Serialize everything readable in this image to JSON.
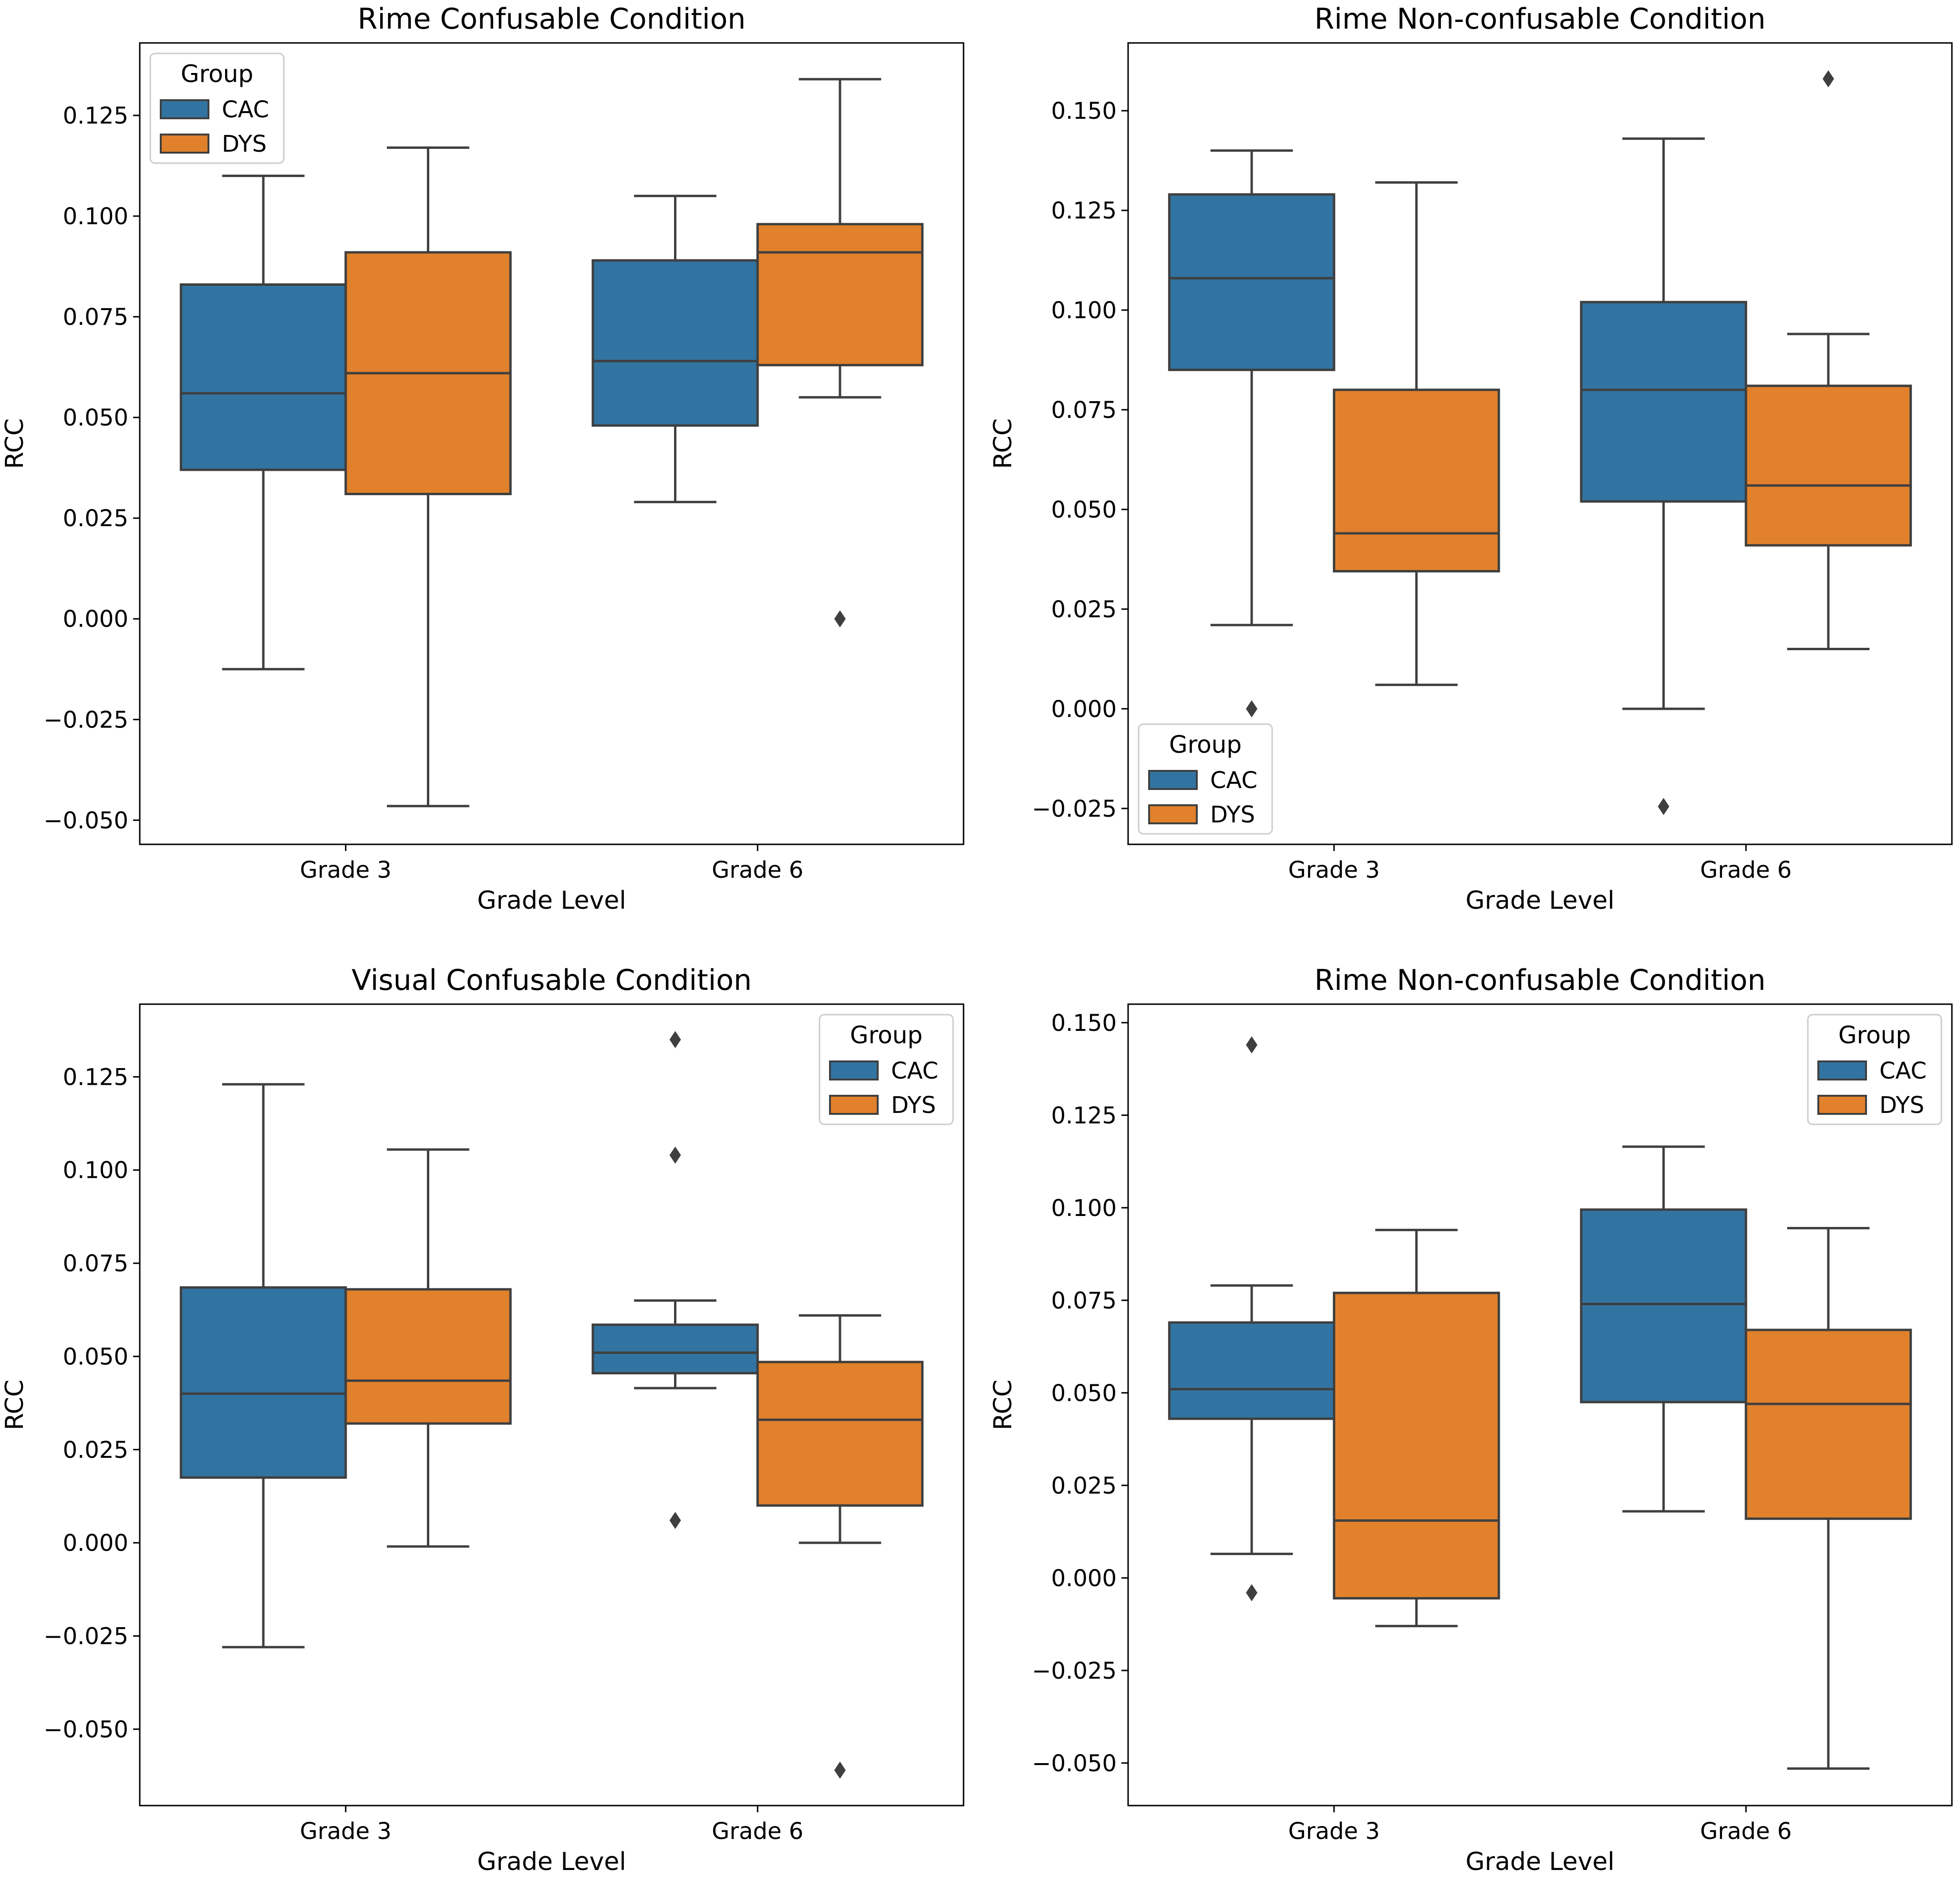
{
  "colors": {
    "CAC": "#3274a1",
    "DYS": "#e1812c",
    "edge": "#3f3f3f",
    "frame": "#000000",
    "background": "#ffffff"
  },
  "chart_data": [
    {
      "type": "box",
      "title": "Rime Confusable Condition",
      "xlabel": "Grade Level",
      "ylabel": "RCC",
      "categories": [
        "Grade 3",
        "Grade 6"
      ],
      "ylim": [
        -0.056,
        0.143
      ],
      "yticks": [
        -0.05,
        -0.025,
        0.0,
        0.025,
        0.05,
        0.075,
        0.1,
        0.125
      ],
      "ytick_labels": [
        "−0.050",
        "−0.025",
        "0.000",
        "0.025",
        "0.050",
        "0.075",
        "0.100",
        "0.125"
      ],
      "legend": {
        "title": "Group",
        "position": "upper-left",
        "entries": [
          "CAC",
          "DYS"
        ]
      },
      "series": [
        {
          "name": "CAC",
          "boxes": [
            {
              "whislo": -0.0125,
              "q1": 0.037,
              "med": 0.056,
              "q3": 0.083,
              "whishi": 0.11,
              "fliers": []
            },
            {
              "whislo": 0.029,
              "q1": 0.048,
              "med": 0.064,
              "q3": 0.089,
              "whishi": 0.105,
              "fliers": []
            }
          ]
        },
        {
          "name": "DYS",
          "boxes": [
            {
              "whislo": -0.0465,
              "q1": 0.031,
              "med": 0.061,
              "q3": 0.091,
              "whishi": 0.117,
              "fliers": []
            },
            {
              "whislo": 0.055,
              "q1": 0.063,
              "med": 0.091,
              "q3": 0.098,
              "whishi": 0.134,
              "fliers": [
                0.0
              ]
            }
          ]
        }
      ]
    },
    {
      "type": "box",
      "title": "Rime Non-confusable Condition",
      "xlabel": "Grade Level",
      "ylabel": "RCC",
      "categories": [
        "Grade 3",
        "Grade 6"
      ],
      "ylim": [
        -0.034,
        0.167
      ],
      "yticks": [
        -0.025,
        0.0,
        0.025,
        0.05,
        0.075,
        0.1,
        0.125,
        0.15
      ],
      "ytick_labels": [
        "−0.025",
        "0.000",
        "0.025",
        "0.050",
        "0.075",
        "0.100",
        "0.125",
        "0.150"
      ],
      "legend": {
        "title": "Group",
        "position": "lower-left",
        "entries": [
          "CAC",
          "DYS"
        ]
      },
      "series": [
        {
          "name": "CAC",
          "boxes": [
            {
              "whislo": 0.021,
              "q1": 0.085,
              "med": 0.108,
              "q3": 0.129,
              "whishi": 0.14,
              "fliers": [
                0.0
              ]
            },
            {
              "whislo": 0.0,
              "q1": 0.052,
              "med": 0.08,
              "q3": 0.102,
              "whishi": 0.143,
              "fliers": [
                -0.0245
              ]
            }
          ]
        },
        {
          "name": "DYS",
          "boxes": [
            {
              "whislo": 0.006,
              "q1": 0.0345,
              "med": 0.044,
              "q3": 0.08,
              "whishi": 0.132,
              "fliers": []
            },
            {
              "whislo": 0.015,
              "q1": 0.041,
              "med": 0.056,
              "q3": 0.081,
              "whishi": 0.094,
              "fliers": [
                0.158
              ]
            }
          ]
        }
      ]
    },
    {
      "type": "box",
      "title": "Visual Confusable Condition",
      "xlabel": "Grade Level",
      "ylabel": "RCC",
      "categories": [
        "Grade 3",
        "Grade 6"
      ],
      "ylim": [
        -0.0705,
        0.1445
      ],
      "yticks": [
        -0.05,
        -0.025,
        0.0,
        0.025,
        0.05,
        0.075,
        0.1,
        0.125
      ],
      "ytick_labels": [
        "−0.050",
        "−0.025",
        "0.000",
        "0.025",
        "0.050",
        "0.075",
        "0.100",
        "0.125"
      ],
      "legend": {
        "title": "Group",
        "position": "upper-right",
        "entries": [
          "CAC",
          "DYS"
        ]
      },
      "series": [
        {
          "name": "CAC",
          "boxes": [
            {
              "whislo": -0.028,
              "q1": 0.0175,
              "med": 0.04,
              "q3": 0.0685,
              "whishi": 0.123,
              "fliers": []
            },
            {
              "whislo": 0.0415,
              "q1": 0.0455,
              "med": 0.051,
              "q3": 0.0585,
              "whishi": 0.065,
              "fliers": [
                0.135,
                0.104,
                0.006
              ]
            }
          ]
        },
        {
          "name": "DYS",
          "boxes": [
            {
              "whislo": -0.001,
              "q1": 0.032,
              "med": 0.0435,
              "q3": 0.068,
              "whishi": 0.1055,
              "fliers": []
            },
            {
              "whislo": 0.0,
              "q1": 0.01,
              "med": 0.033,
              "q3": 0.0485,
              "whishi": 0.061,
              "fliers": [
                -0.061
              ]
            }
          ]
        }
      ]
    },
    {
      "type": "box",
      "title": "Rime Non-confusable Condition",
      "xlabel": "Grade Level",
      "ylabel": "RCC",
      "categories": [
        "Grade 3",
        "Grade 6"
      ],
      "ylim": [
        -0.0615,
        0.155
      ],
      "yticks": [
        -0.05,
        -0.025,
        0.0,
        0.025,
        0.05,
        0.075,
        0.1,
        0.125,
        0.15
      ],
      "ytick_labels": [
        "−0.050",
        "−0.025",
        "0.000",
        "0.025",
        "0.050",
        "0.075",
        "0.100",
        "0.125",
        "0.150"
      ],
      "legend": {
        "title": "Group",
        "position": "upper-right",
        "entries": [
          "CAC",
          "DYS"
        ]
      },
      "series": [
        {
          "name": "CAC",
          "boxes": [
            {
              "whislo": 0.0065,
              "q1": 0.043,
              "med": 0.051,
              "q3": 0.069,
              "whishi": 0.079,
              "fliers": [
                0.144,
                -0.004
              ]
            },
            {
              "whislo": 0.018,
              "q1": 0.0475,
              "med": 0.074,
              "q3": 0.0995,
              "whishi": 0.1165,
              "fliers": []
            }
          ]
        },
        {
          "name": "DYS",
          "boxes": [
            {
              "whislo": -0.013,
              "q1": -0.0055,
              "med": 0.0155,
              "q3": 0.077,
              "whishi": 0.094,
              "fliers": []
            },
            {
              "whislo": -0.0515,
              "q1": 0.016,
              "med": 0.047,
              "q3": 0.067,
              "whishi": 0.0945,
              "fliers": []
            }
          ]
        }
      ]
    }
  ]
}
